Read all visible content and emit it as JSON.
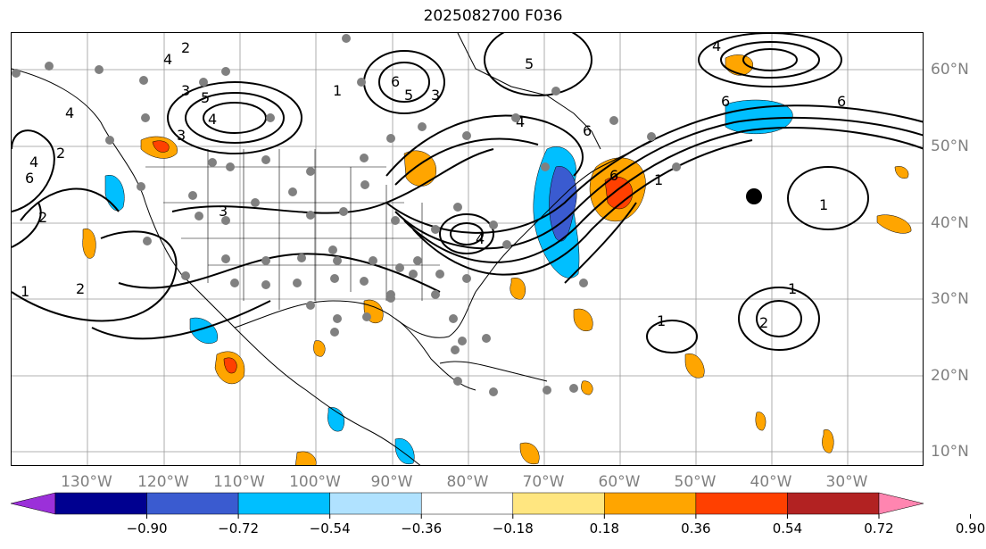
{
  "title": "2025082700 F036",
  "longitudes": [
    "130°W",
    "120°W",
    "110°W",
    "100°W",
    "90°W",
    "80°W",
    "70°W",
    "60°W",
    "50°W",
    "40°W",
    "30°W"
  ],
  "latitudes": [
    "60°N",
    "50°N",
    "40°N",
    "30°N",
    "20°N",
    "10°N"
  ],
  "contour_labels": [
    "2",
    "4",
    "3",
    "5",
    "4",
    "4",
    "1",
    "6",
    "5",
    "3",
    "5",
    "4",
    "2",
    "4",
    "6",
    "4",
    "3",
    "4",
    "6",
    "6",
    "3",
    "1",
    "1",
    "2",
    "1",
    "2",
    "1",
    "2",
    "6",
    "6",
    "1"
  ],
  "colorbar": {
    "ticks": [
      "−0.90",
      "−0.72",
      "−0.54",
      "−0.36",
      "−0.18",
      "0.18",
      "0.36",
      "0.54",
      "0.72",
      "0.90"
    ],
    "colors": [
      "#9b30d9",
      "#000090",
      "#3a5bd0",
      "#00bfff",
      "#b0e2ff",
      "#ffffff",
      "#ffe680",
      "#ffa500",
      "#ff4000",
      "#b22222",
      "#ff85b0"
    ]
  }
}
